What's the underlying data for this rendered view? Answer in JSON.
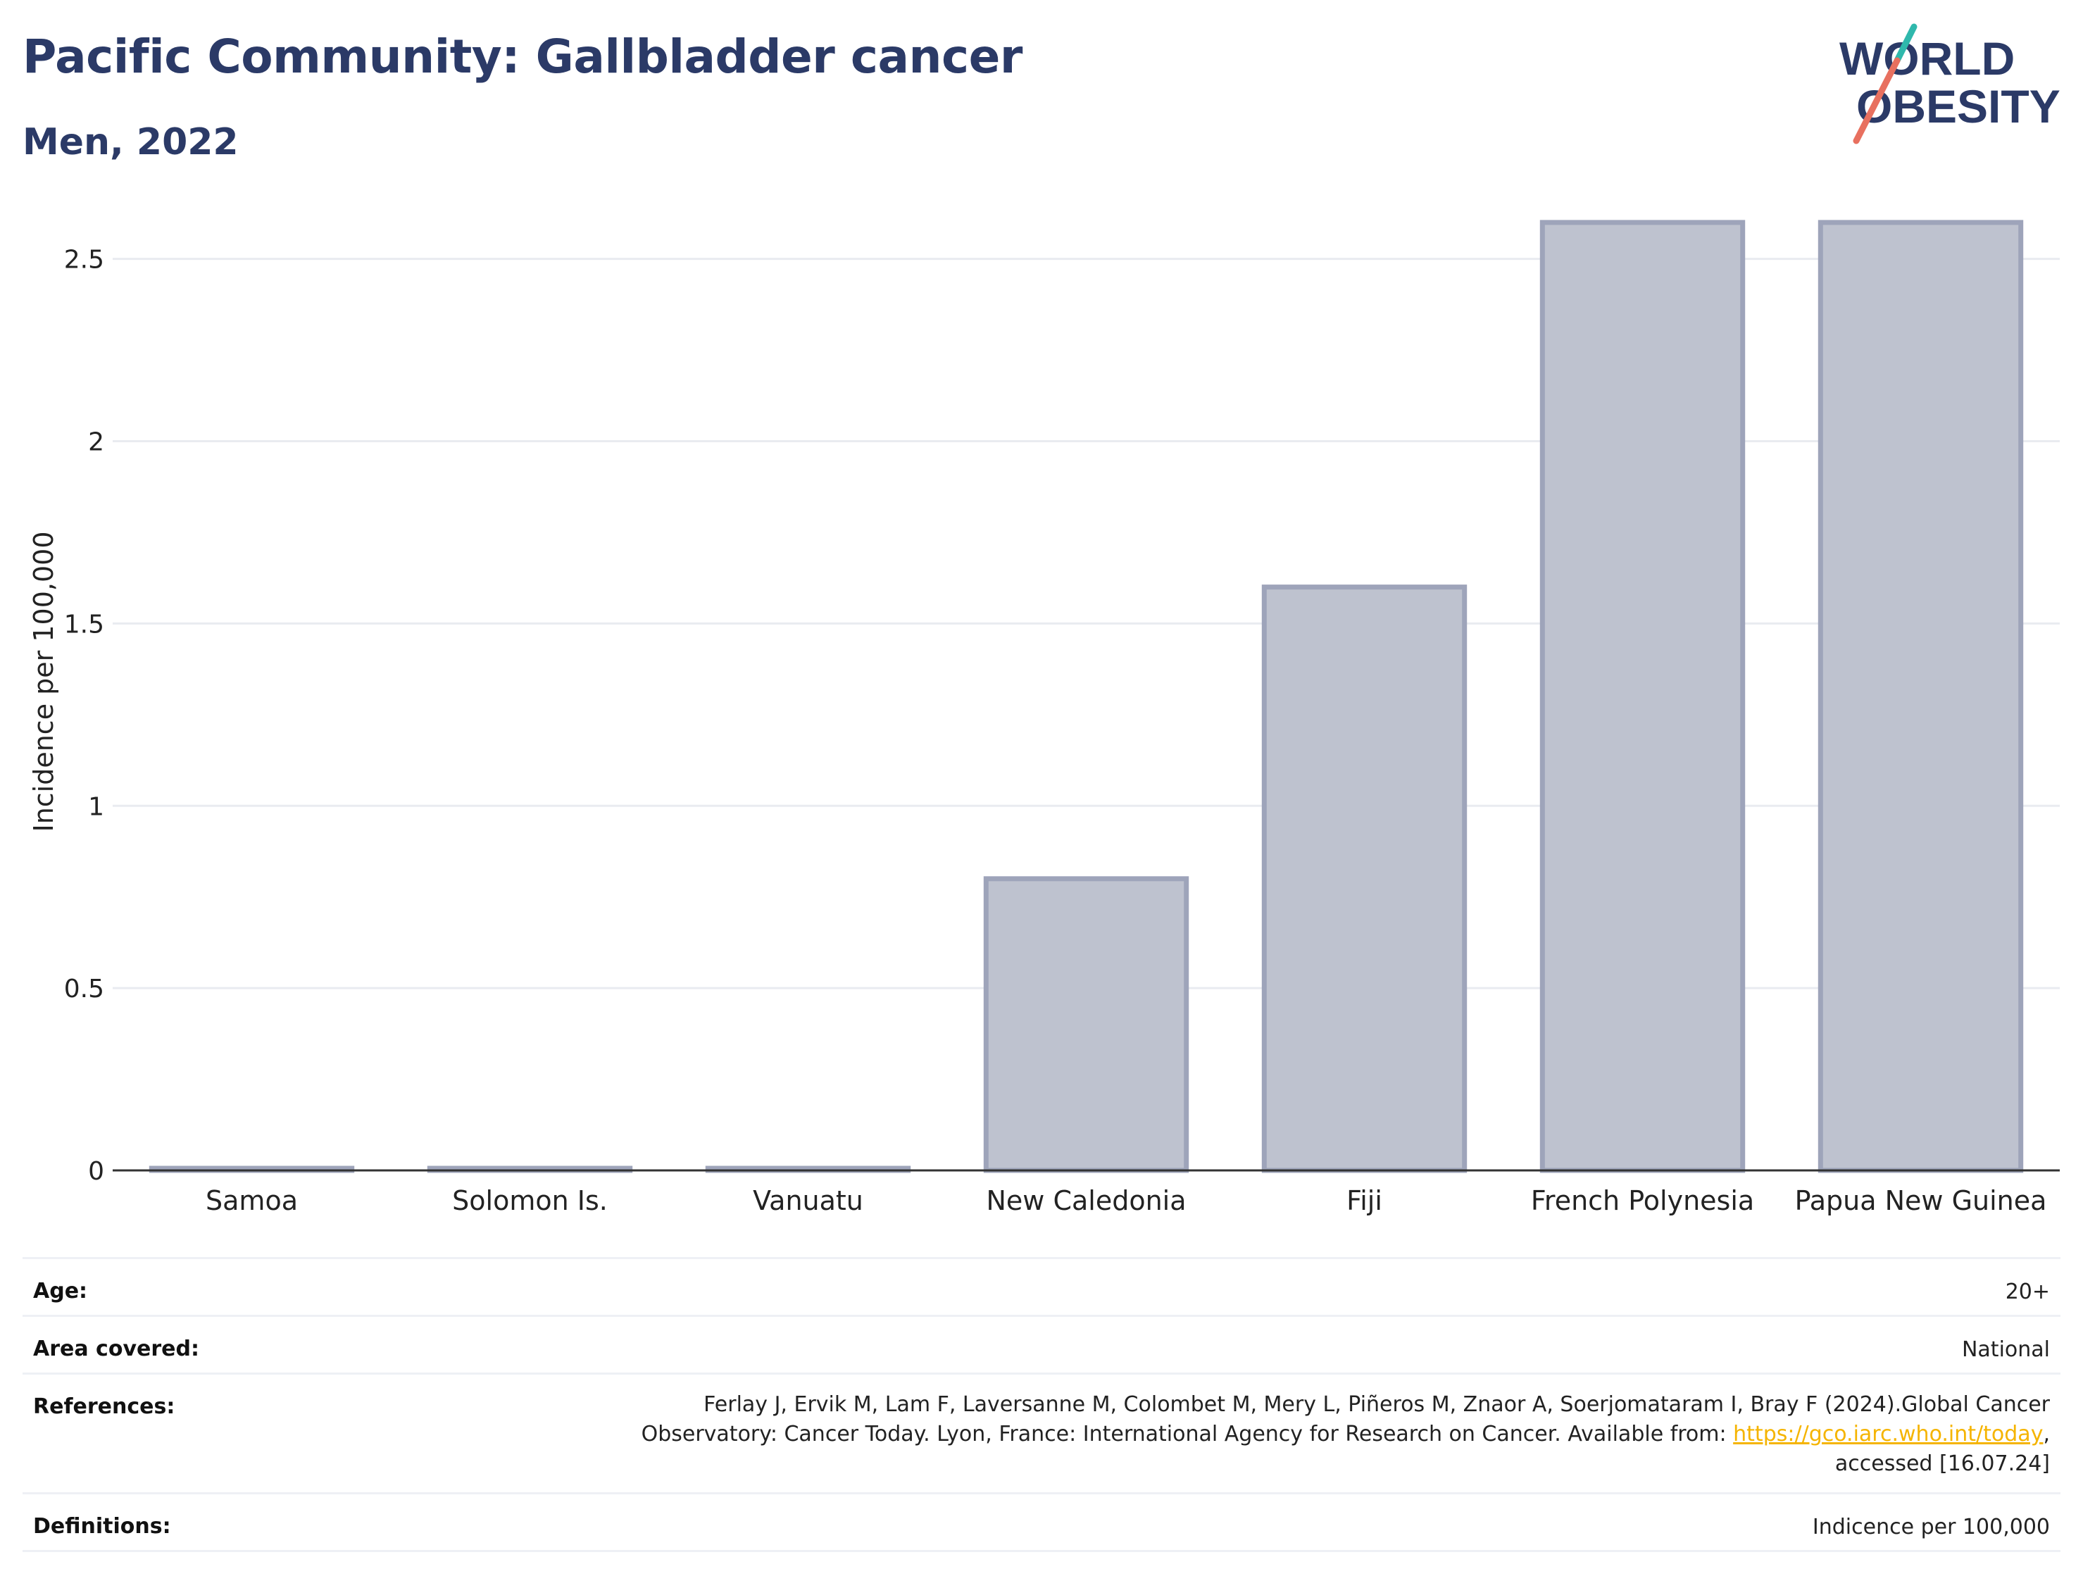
{
  "header": {
    "title": "Pacific Community: Gallbladder cancer",
    "subtitle": "Men, 2022",
    "logo_line1": "WORLD",
    "logo_line2": "OBESITY"
  },
  "colors": {
    "title": "#2b3a67",
    "bar_fill": "#bec2cf",
    "bar_stroke": "#9ea4ba",
    "grid": "#e9ebf0",
    "logo_teal": "#2fb8ac",
    "logo_coral": "#e8705f",
    "link": "#f5b400"
  },
  "chart_data": {
    "type": "bar",
    "categories": [
      "Samoa",
      "Solomon Is.",
      "Vanuatu",
      "New Caledonia",
      "Fiji",
      "French Polynesia",
      "Papua New Guinea"
    ],
    "values": [
      0,
      0,
      0,
      0.8,
      1.6,
      2.6,
      2.6
    ],
    "ylabel": "Incidence per 100,000",
    "ylim": [
      0,
      2.65
    ],
    "yticks": [
      0,
      0.5,
      1,
      1.5,
      2,
      2.5
    ],
    "ytick_labels": [
      "0",
      "0.5",
      "1",
      "1.5",
      "2",
      "2.5"
    ],
    "grid": true
  },
  "meta": {
    "age_label": "Age:",
    "age_value": "20+",
    "area_label": "Area covered:",
    "area_value": "National",
    "references_label": "References:",
    "references_line1": "Ferlay J, Ervik M, Lam F, Laversanne M, Colombet M, Mery L, Piñeros M, Znaor A, Soerjomataram I, Bray F (2024).Global Cancer",
    "references_line2_pre": "Observatory: Cancer Today. Lyon, France: International Agency for Research on Cancer. Available from: ",
    "references_link": "https://gco.iarc.who.int/today",
    "references_line2_post": ",",
    "references_line3": "accessed [16.07.24]",
    "definitions_label": "Definitions:",
    "definitions_value": "Indicence per 100,000"
  }
}
